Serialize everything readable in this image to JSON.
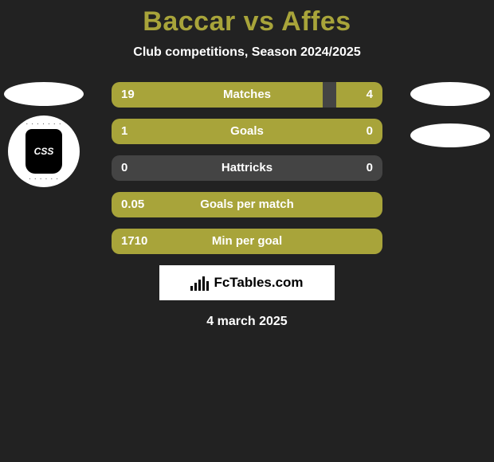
{
  "header": {
    "title": "Baccar vs Affes",
    "subtitle": "Club competitions, Season 2024/2025"
  },
  "colors": {
    "fill": "#a8a43a",
    "track": "#444444",
    "text": "#ffffff",
    "box": "#ffffff"
  },
  "player_left": {
    "club_abbr": "CSS"
  },
  "stats": [
    {
      "label": "Matches",
      "left_val": "19",
      "right_val": "4",
      "left_pct": 78,
      "right_pct": 17
    },
    {
      "label": "Goals",
      "left_val": "1",
      "right_val": "0",
      "left_pct": 100,
      "right_pct": 0
    },
    {
      "label": "Hattricks",
      "left_val": "0",
      "right_val": "0",
      "left_pct": 0,
      "right_pct": 0
    },
    {
      "label": "Goals per match",
      "left_val": "0.05",
      "right_val": "",
      "left_pct": 100,
      "right_pct": 0
    },
    {
      "label": "Min per goal",
      "left_val": "1710",
      "right_val": "",
      "left_pct": 100,
      "right_pct": 0
    }
  ],
  "footer": {
    "brand": "FcTables.com",
    "date": "4 march 2025"
  }
}
